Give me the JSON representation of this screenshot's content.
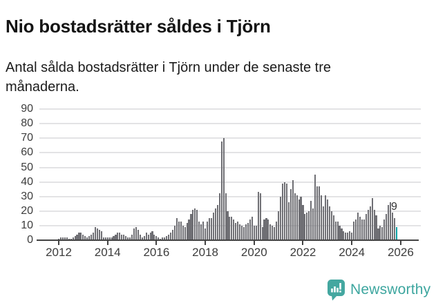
{
  "header": {
    "title": "Nio bostadsrätter såldes i Tjörn",
    "subtitle": "Antal sålda bostadsrätter i Tjörn under de senaste tre månaderna."
  },
  "chart_data": {
    "type": "bar",
    "title": "Nio bostadsrätter såldes i Tjörn",
    "subtitle": "Antal sålda bostadsrätter i Tjörn under de senaste tre månaderna.",
    "x_interval": "month",
    "x_start_month": "2012-01",
    "x_end_month": "2025-11",
    "x_tick_labels": [
      "2012",
      "2014",
      "2016",
      "2018",
      "2020",
      "2022",
      "2024",
      "2026"
    ],
    "y_ticks": [
      0,
      10,
      20,
      30,
      40,
      50,
      60,
      70,
      80,
      90
    ],
    "ylim": [
      0,
      90
    ],
    "grid": true,
    "legend_position": "none",
    "xlabel": "",
    "ylabel": "",
    "values": [
      1,
      2,
      2,
      2,
      2,
      1,
      1,
      2,
      3,
      4,
      5,
      5,
      4,
      3,
      2,
      3,
      4,
      5,
      9,
      8,
      7,
      6,
      2,
      2,
      2,
      2,
      2,
      3,
      4,
      5,
      5,
      4,
      4,
      3,
      2,
      2,
      4,
      8,
      9,
      7,
      4,
      2,
      3,
      5,
      4,
      5,
      6,
      4,
      3,
      2,
      1,
      2,
      2,
      3,
      4,
      5,
      7,
      10,
      15,
      13,
      13,
      10,
      9,
      12,
      14,
      18,
      21,
      22,
      21,
      13,
      11,
      13,
      8,
      13,
      15,
      15,
      19,
      22,
      24,
      32,
      68,
      70,
      32,
      20,
      16,
      16,
      14,
      12,
      13,
      11,
      10,
      9,
      11,
      12,
      14,
      16,
      10,
      10,
      33,
      32,
      9,
      14,
      15,
      14,
      11,
      10,
      9,
      13,
      20,
      30,
      39,
      40,
      39,
      26,
      35,
      41,
      32,
      31,
      28,
      30,
      24,
      18,
      19,
      20,
      27,
      22,
      45,
      37,
      37,
      31,
      23,
      31,
      28,
      23,
      20,
      17,
      13,
      13,
      10,
      8,
      6,
      5,
      5,
      6,
      5,
      13,
      14,
      19,
      16,
      14,
      14,
      18,
      21,
      23,
      29,
      21,
      17,
      8,
      10,
      9,
      14,
      18,
      24,
      26,
      19,
      15,
      9
    ],
    "bar_color": "#6f6f74",
    "highlight": {
      "index": 166,
      "month": "2025-11",
      "value": 9,
      "label": "9",
      "color": "#0aa0a3"
    }
  },
  "annotation": {
    "label": "9"
  },
  "footer": {
    "brand": "Newsworthy"
  },
  "colors": {
    "bar_default": "#6f6f74",
    "bar_highlight": "#0aa0a3",
    "brand_teal": "#3da69f",
    "icon_teal": "#44a7a0"
  }
}
